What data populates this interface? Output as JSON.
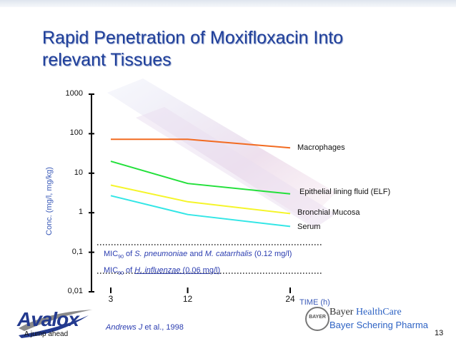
{
  "slide": {
    "title_line1": "Rapid Penetration of Moxifloxacin Into",
    "title_line2": "relevant Tissues",
    "page_number": "13",
    "source_author": "Andrews J",
    "source_rest": " et al., 1998"
  },
  "branding": {
    "product_name": "Avalox",
    "product_tagline": "A jump ahead",
    "company_logo_text": "BAYER",
    "company_line1_a": "Bayer ",
    "company_line1_b": "HealthCare",
    "company_line2": "Bayer Schering Pharma"
  },
  "chart_data": {
    "type": "line",
    "ylabel": "Conc.  (mg/l,  mg/kg)",
    "xlabel": "TIME  (h)",
    "y_scale": "log",
    "ylim": [
      0.01,
      1000
    ],
    "y_ticks": [
      "0,01",
      "0,1",
      "1",
      "10",
      "100",
      "1000"
    ],
    "y_tick_values": [
      0.01,
      0.1,
      1,
      10,
      100,
      1000
    ],
    "x_ticks": [
      "3",
      "12",
      "24"
    ],
    "x_tick_values": [
      3,
      12,
      24
    ],
    "xlim": [
      3,
      24
    ],
    "grid": false,
    "series": [
      {
        "name": "Macrophages",
        "color": "#f26b21",
        "x": [
          3,
          12,
          24
        ],
        "y": [
          72,
          72,
          44
        ]
      },
      {
        "name": "Epithelial lining fluid (ELF)",
        "color": "#22e03a",
        "x": [
          3,
          12,
          24
        ],
        "y": [
          20,
          5.5,
          3
        ]
      },
      {
        "name": "Bronchial Mucosa",
        "color": "#f5f52a",
        "x": [
          3,
          12,
          24
        ],
        "y": [
          5,
          1.9,
          0.95
        ]
      },
      {
        "name": "Serum",
        "color": "#33e6e6",
        "x": [
          3,
          12,
          24
        ],
        "y": [
          2.7,
          0.9,
          0.45
        ]
      }
    ],
    "reference_lines": [
      {
        "label_pre": "MIC",
        "label_sub": "90",
        "label_post_a": " of ",
        "organism_a": "S. pneumoniae",
        "label_post_b": " and ",
        "organism_b": "M. catarrhalis",
        "label_post_c": " (0.12 mg/l)",
        "value": 0.12
      },
      {
        "label_pre": "MIC",
        "label_sub": "90",
        "label_post_a": " of ",
        "organism_a": "H. influenzae",
        "label_post_b": "",
        "organism_b": "",
        "label_post_c": " (0.06 mg/l)",
        "value": 0.06
      }
    ]
  }
}
